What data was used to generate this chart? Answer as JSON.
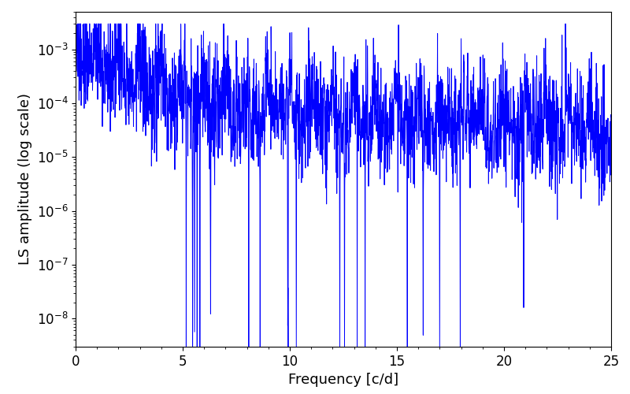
{
  "title": "",
  "xlabel": "Frequency [c/d]",
  "ylabel": "LS amplitude (log scale)",
  "xlim": [
    0,
    25
  ],
  "ylim": [
    3e-09,
    0.005
  ],
  "line_color": "#0000ff",
  "line_width": 0.7,
  "freq_min": 0.0,
  "freq_max": 25.0,
  "n_points": 2500,
  "seed": 137,
  "background_color": "#ffffff",
  "tick_label_size": 12,
  "axis_label_size": 13
}
